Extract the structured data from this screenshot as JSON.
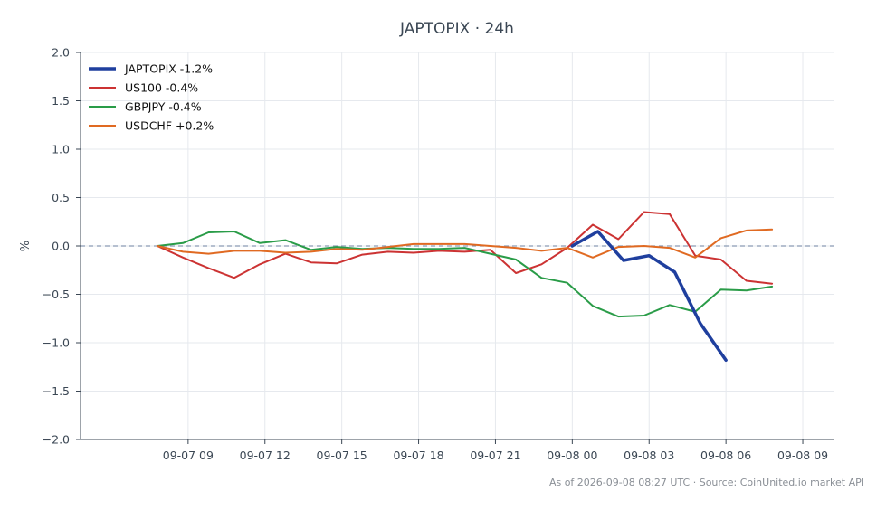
{
  "chart_data": {
    "type": "line",
    "title": "JAPTOPIX · 24h",
    "xlabel": "",
    "ylabel": "%",
    "ylim": [
      -2.0,
      2.0
    ],
    "xlim_hours": [
      -4.2,
      25.2
    ],
    "y_ticks": [
      2.0,
      1.5,
      1.0,
      0.5,
      0.0,
      -0.5,
      -1.0,
      -1.5,
      -2.0
    ],
    "y_tick_labels": [
      "2.0",
      "1.5",
      "1.0",
      "0.5",
      "0.0",
      "−0.5",
      "−1.0",
      "−1.5",
      "−2.0"
    ],
    "x_ticks_hours": [
      0,
      3,
      6,
      9,
      12,
      15,
      18,
      21,
      24
    ],
    "x_tick_labels": [
      "09-07 09",
      "09-07 12",
      "09-07 15",
      "09-07 18",
      "09-07 21",
      "09-08 00",
      "09-08 03",
      "09-08 06",
      "09-08 09"
    ],
    "x_origin_label": "09-07 09:00",
    "grid": true,
    "zero_line": true,
    "legend_position": "top-left",
    "series": [
      {
        "name": "JAPTOPIX -1.2%",
        "color": "#1f3f9e",
        "width": 3.5,
        "x": [
          15.0,
          16.0,
          17.0,
          18.0,
          19.0,
          20.0,
          21.0
        ],
        "y": [
          0.0,
          0.15,
          -0.15,
          -0.1,
          -0.27,
          -0.8,
          -1.18
        ]
      },
      {
        "name": "US100 -0.4%",
        "color": "#cc3333",
        "width": 2,
        "x": [
          -1.2,
          -0.2,
          0.8,
          1.8,
          2.8,
          3.8,
          4.8,
          5.8,
          6.8,
          7.8,
          8.8,
          9.8,
          10.8,
          11.8,
          12.8,
          13.8,
          14.8,
          15.8,
          16.8,
          17.8,
          18.8,
          19.8,
          20.8,
          21.8,
          22.8
        ],
        "y": [
          0.0,
          -0.12,
          -0.23,
          -0.33,
          -0.19,
          -0.08,
          -0.17,
          -0.18,
          -0.09,
          -0.06,
          -0.07,
          -0.05,
          -0.06,
          -0.04,
          -0.28,
          -0.19,
          -0.02,
          0.22,
          0.07,
          0.35,
          0.33,
          -0.1,
          -0.14,
          -0.36,
          -0.39
        ]
      },
      {
        "name": "GBPJPY -0.4%",
        "color": "#2a9c48",
        "width": 2,
        "x": [
          -1.2,
          -0.2,
          0.8,
          1.8,
          2.8,
          3.8,
          4.8,
          5.8,
          6.8,
          7.8,
          8.8,
          9.8,
          10.8,
          11.8,
          12.8,
          13.8,
          14.8,
          15.8,
          16.8,
          17.8,
          18.8,
          19.8,
          20.8,
          21.8,
          22.8
        ],
        "y": [
          0.0,
          0.03,
          0.14,
          0.15,
          0.03,
          0.06,
          -0.04,
          -0.01,
          -0.03,
          -0.02,
          -0.03,
          -0.03,
          -0.02,
          -0.08,
          -0.14,
          -0.33,
          -0.38,
          -0.62,
          -0.73,
          -0.72,
          -0.61,
          -0.68,
          -0.45,
          -0.46,
          -0.42
        ]
      },
      {
        "name": "USDCHF +0.2%",
        "color": "#e06a22",
        "width": 2,
        "x": [
          -1.2,
          -0.2,
          0.8,
          1.8,
          2.8,
          3.8,
          4.8,
          5.8,
          6.8,
          7.8,
          8.8,
          9.8,
          10.8,
          11.8,
          12.8,
          13.8,
          14.8,
          15.8,
          16.8,
          17.8,
          18.8,
          19.8,
          20.8,
          21.8,
          22.8
        ],
        "y": [
          0.0,
          -0.06,
          -0.08,
          -0.05,
          -0.05,
          -0.07,
          -0.06,
          -0.03,
          -0.04,
          -0.01,
          0.02,
          0.02,
          0.02,
          0.0,
          -0.02,
          -0.05,
          -0.02,
          -0.12,
          -0.01,
          0.0,
          -0.02,
          -0.12,
          0.08,
          0.16,
          0.17
        ]
      }
    ],
    "footer": "As of 2026-09-08 08:27 UTC · Source: CoinUnited.io market API"
  }
}
